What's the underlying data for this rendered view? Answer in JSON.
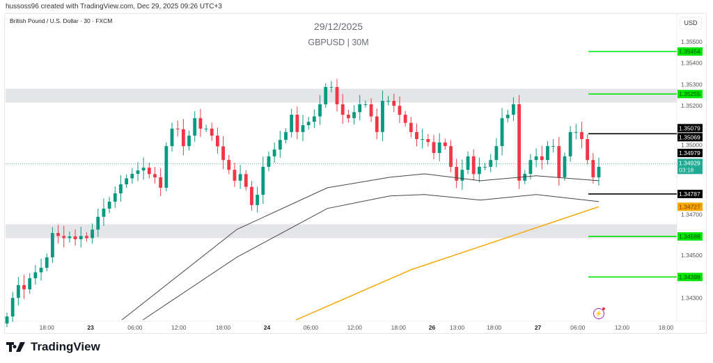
{
  "header": {
    "credit": "hussoss96 created with TradingView.com, Dec 29, 2025 09:26 UTC+3"
  },
  "symbol_line": "British Pound / U.S. Dollar · 30 · FXCM",
  "watermark": {
    "date": "29/12/2025",
    "pair": "GBPUSD | 30M"
  },
  "currency": "USD",
  "brand": "TradingView",
  "colors": {
    "up": "#089981",
    "down": "#f23645",
    "level_green": "#00e600",
    "orange": "#f7a600",
    "zone": "#e4e5e9"
  },
  "chart_data": {
    "type": "candlestick",
    "ylim": [
      1.3419,
      1.3562
    ],
    "price_ticks": [
      "1.35500",
      "1.35400",
      "1.35300",
      "1.35200",
      "1.35000",
      "1.34700",
      "1.34500",
      "1.34300"
    ],
    "time_ticks": [
      {
        "label": "18:00",
        "bold": false,
        "index": 7
      },
      {
        "label": "23",
        "bold": true,
        "index": 14.7
      },
      {
        "label": "06:00",
        "bold": false,
        "index": 22.5
      },
      {
        "label": "12:00",
        "bold": false,
        "index": 30.2
      },
      {
        "label": "18:00",
        "bold": false,
        "index": 38
      },
      {
        "label": "24",
        "bold": true,
        "index": 45.7
      },
      {
        "label": "06:00",
        "bold": false,
        "index": 53.4
      },
      {
        "label": "12:00",
        "bold": false,
        "index": 61.1
      },
      {
        "label": "18:00",
        "bold": false,
        "index": 68.8
      },
      {
        "label": "26",
        "bold": true,
        "index": 74.7
      },
      {
        "label": "13:00",
        "bold": false,
        "index": 79.1
      },
      {
        "label": "18:00",
        "bold": false,
        "index": 85.6
      },
      {
        "label": "27",
        "bold": true,
        "index": 93.3
      },
      {
        "label": "06:00",
        "bold": false,
        "index": 100.3
      },
      {
        "label": "12:00",
        "bold": false,
        "index": 108.1
      },
      {
        "label": "18:00",
        "bold": false,
        "index": 115.8
      }
    ],
    "open_first": 1.3418,
    "closes": [
      1.34213,
      1.343,
      1.3436,
      1.3434,
      1.34392,
      1.3442,
      1.34441,
      1.3449,
      1.34604,
      1.3459,
      1.3458,
      1.34588,
      1.34575,
      1.3459,
      1.3458,
      1.3462,
      1.3468,
      1.34718,
      1.34751,
      1.3479,
      1.34832,
      1.3486,
      1.34881,
      1.34897,
      1.3491,
      1.3488,
      1.34865,
      1.34816,
      1.35011,
      1.35093,
      1.3509,
      1.35011,
      1.3506,
      1.35142,
      1.35093,
      1.35093,
      1.3506,
      1.3501,
      1.34946,
      1.349,
      1.34849,
      1.3488,
      1.3482,
      1.34735,
      1.34783,
      1.34914,
      1.34963,
      1.34995,
      1.3504,
      1.35077,
      1.35158,
      1.35077,
      1.35109,
      1.35125,
      1.3515,
      1.35207,
      1.35288,
      1.35288,
      1.35207,
      1.35158,
      1.35142,
      1.3517,
      1.35207,
      1.35207,
      1.3515,
      1.35077,
      1.35223,
      1.35223,
      1.352,
      1.35158,
      1.3512,
      1.35077,
      1.35044,
      1.35044,
      1.3503,
      1.34979,
      1.35028,
      1.35011,
      1.34914,
      1.34849,
      1.349,
      1.34963,
      1.3488,
      1.34914,
      1.34914,
      1.34946,
      1.35011,
      1.35142,
      1.35158,
      1.35207,
      1.34849,
      1.34881,
      1.34946,
      1.34963,
      1.34946,
      1.35011,
      1.35011,
      1.34865,
      1.34963,
      1.35077,
      1.35077,
      1.35044,
      1.34946,
      1.34865,
      1.34914
    ],
    "lines": [
      {
        "name": "ma-upper",
        "color": "#444444",
        "points": [
          [
            20.2,
            1.34197
          ],
          [
            40.4,
            1.34621
          ],
          [
            56.3,
            1.34816
          ],
          [
            67.3,
            1.34865
          ],
          [
            73.4,
            1.34881
          ],
          [
            83.2,
            1.34849
          ],
          [
            93,
            1.34872
          ],
          [
            104,
            1.34849
          ]
        ]
      },
      {
        "name": "ma-lower",
        "color": "#444444",
        "points": [
          [
            23.9,
            1.34197
          ],
          [
            40.4,
            1.34491
          ],
          [
            56.3,
            1.34719
          ],
          [
            67.3,
            1.34778
          ],
          [
            73.4,
            1.34784
          ],
          [
            83.2,
            1.34758
          ],
          [
            93,
            1.34784
          ],
          [
            104,
            1.34751
          ]
        ]
      },
      {
        "name": "ma-long",
        "color": "#f7a600",
        "points": [
          [
            50.8,
            1.34197
          ],
          [
            71,
            1.34432
          ],
          [
            104,
            1.34727
          ]
        ]
      }
    ],
    "zones": [
      [
        1.35215,
        1.3528
      ],
      [
        1.3458,
        1.34645
      ]
    ],
    "levels": [
      {
        "price": 1.35454,
        "label": "1.35454",
        "type": "green"
      },
      {
        "price": 1.35255,
        "label": "1.35255",
        "type": "green"
      },
      {
        "price": 1.35069,
        "label": "1.35069",
        "type": "black"
      },
      {
        "price": 1.34787,
        "label": "1.34787",
        "type": "black"
      },
      {
        "price": 1.34588,
        "label": "1.34588",
        "type": "green"
      },
      {
        "price": 1.34398,
        "label": "1.34398",
        "type": "green"
      }
    ],
    "axis_labels": [
      {
        "price": 1.35079,
        "label": "1.35079",
        "bg": "#000000",
        "fg": "#ffffff"
      },
      {
        "price": 1.34979,
        "label": "1.34979",
        "bg": "#000000",
        "fg": "#ffffff"
      },
      {
        "price": 1.34727,
        "label": "1.34727",
        "bg": "#f7a600",
        "fg": "#7a3c00"
      }
    ],
    "current": {
      "price": 1.34929,
      "label": "1.34929",
      "countdown": "03:18",
      "bg": "#22ab94"
    }
  }
}
